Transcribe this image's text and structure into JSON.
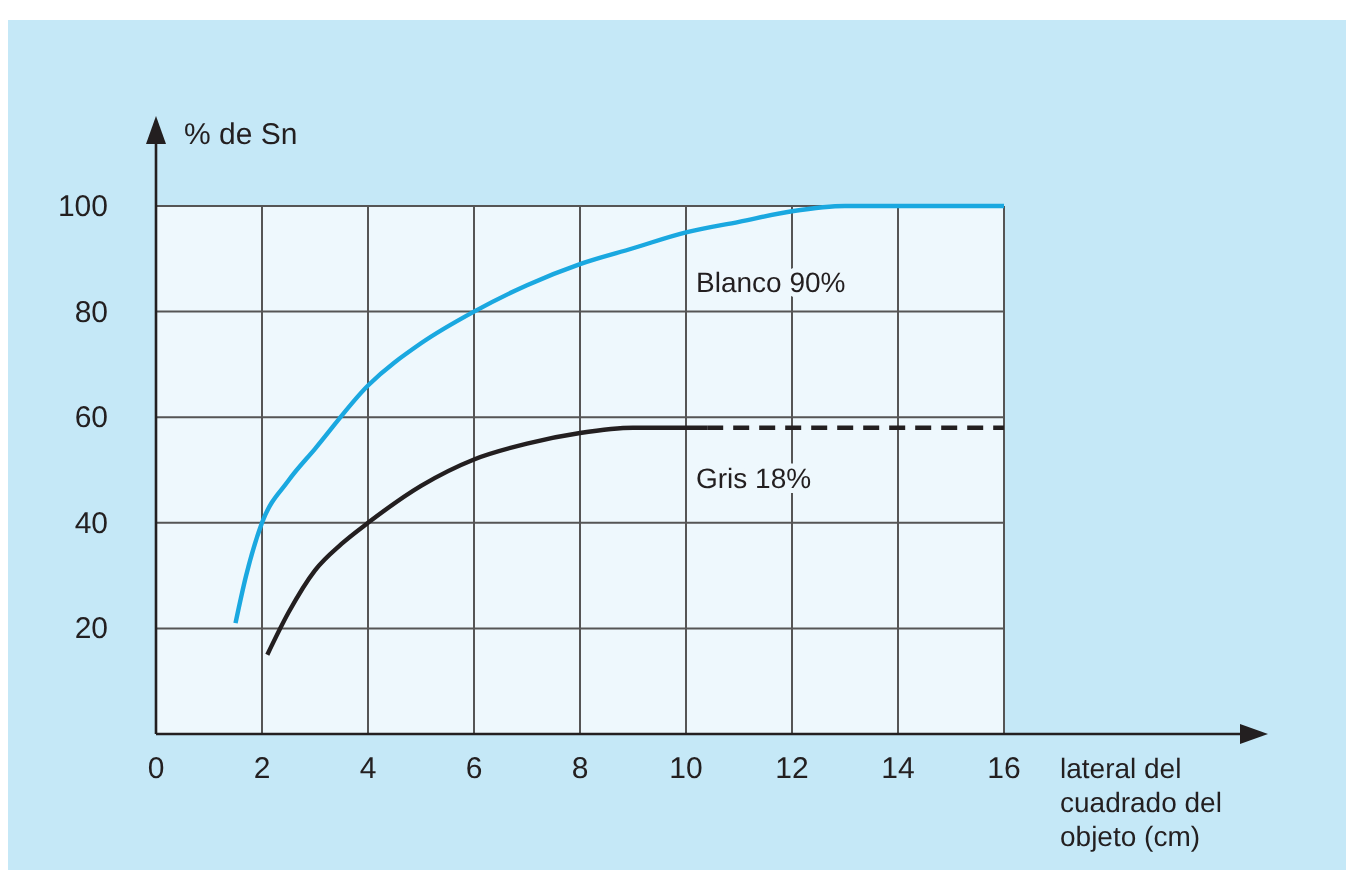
{
  "chart_data": {
    "type": "line",
    "ylabel": "% de Sn",
    "xlabel": "lateral del cuadrado del objeto (cm)",
    "xlim": [
      0,
      16
    ],
    "ylim": [
      0,
      100
    ],
    "xticks": [
      0,
      2,
      4,
      6,
      8,
      10,
      12,
      14,
      16
    ],
    "yticks": [
      20,
      40,
      60,
      80,
      100
    ],
    "grid": true,
    "marker": "none",
    "series": [
      {
        "name": "Blanco 90%",
        "color": "#1aa8e0",
        "x": [
          1.5,
          1.7,
          2,
          2.5,
          3,
          4,
          5,
          6,
          7,
          8,
          9,
          10,
          11,
          12,
          13,
          14,
          16
        ],
        "values": [
          21,
          30,
          40,
          48,
          54,
          66,
          74,
          80,
          85,
          89,
          92,
          95,
          97,
          99,
          100,
          100,
          100
        ]
      },
      {
        "name": "Gris 18%",
        "color": "#231f20",
        "x": [
          2.1,
          2.5,
          3,
          3.5,
          4,
          5,
          6,
          7,
          8,
          9,
          10,
          10.4
        ],
        "values": [
          15,
          23,
          31,
          36,
          40,
          47,
          52,
          55,
          57,
          58,
          58,
          58
        ]
      },
      {
        "color": "#231f20",
        "line_style": "dashed",
        "x": [
          10.4,
          16
        ],
        "values": [
          58,
          58
        ]
      }
    ]
  }
}
